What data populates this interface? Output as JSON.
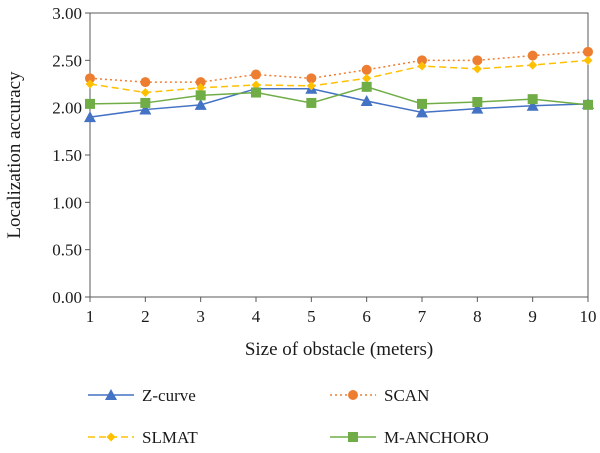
{
  "chart_data": {
    "type": "line",
    "xlabel": "Size of obstacle (meters)",
    "ylabel": "Localization accuracy",
    "x": [
      1,
      2,
      3,
      4,
      5,
      6,
      7,
      8,
      9,
      10
    ],
    "x_tick_labels": [
      "1",
      "2",
      "3",
      "4",
      "5",
      "6",
      "7",
      "8",
      "9",
      "10"
    ],
    "y_tick_labels": [
      "0.00",
      "0.50",
      "1.00",
      "1.50",
      "2.00",
      "2.50",
      "3.00"
    ],
    "ylim": [
      0,
      3
    ],
    "xlim": [
      1,
      10
    ],
    "grid": false,
    "legend_position": "bottom",
    "series": [
      {
        "name": "Z-curve",
        "color": "#4472c4",
        "dash": "solid",
        "marker": "triangle",
        "values": [
          1.9,
          1.98,
          2.03,
          2.2,
          2.2,
          2.07,
          1.95,
          1.99,
          2.02,
          2.04
        ]
      },
      {
        "name": "SCAN",
        "color": "#ed7d31",
        "dash": "dotted",
        "marker": "circle",
        "values": [
          2.31,
          2.27,
          2.27,
          2.35,
          2.31,
          2.4,
          2.5,
          2.5,
          2.55,
          2.59
        ]
      },
      {
        "name": "SLMAT",
        "color": "#ffc000",
        "dash": "dashed",
        "marker": "diamond",
        "values": [
          2.25,
          2.16,
          2.21,
          2.24,
          2.23,
          2.31,
          2.44,
          2.41,
          2.45,
          2.5
        ]
      },
      {
        "name": "M-ANCHORO",
        "color": "#70ad47",
        "dash": "solid",
        "marker": "square",
        "values": [
          2.04,
          2.05,
          2.13,
          2.16,
          2.05,
          2.22,
          2.04,
          2.06,
          2.09,
          2.03
        ]
      }
    ]
  }
}
